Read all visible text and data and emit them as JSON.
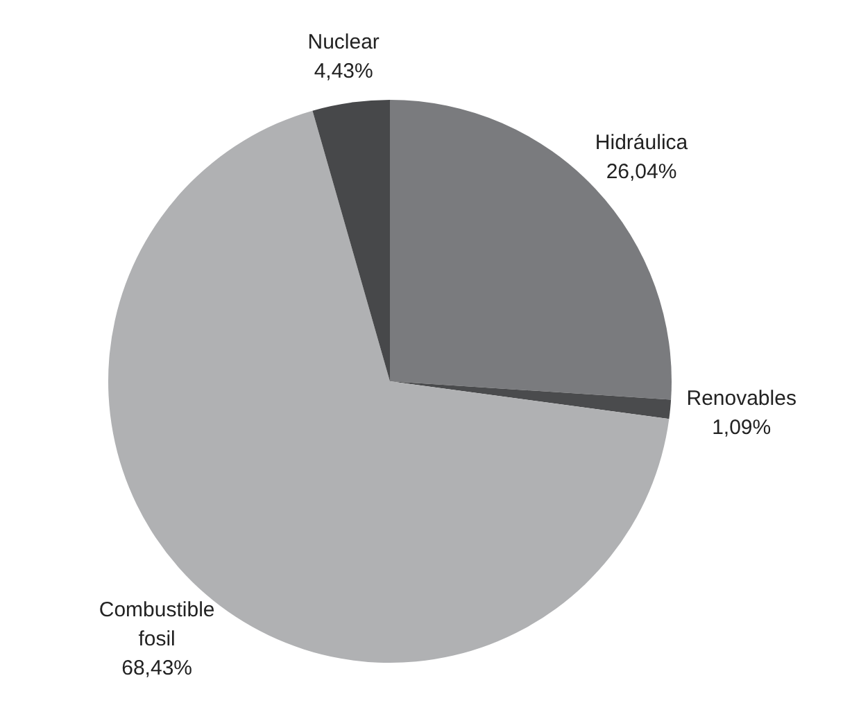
{
  "chart_data": {
    "type": "pie",
    "categories": [
      "Hidráulica",
      "Renovables",
      "Combustible fosil",
      "Nuclear"
    ],
    "values": [
      26.04,
      1.09,
      68.43,
      4.43
    ],
    "colors": [
      "#7a7b7e",
      "#4a4b4d",
      "#b0b1b3",
      "#47484a"
    ],
    "value_labels": [
      "26,04%",
      "1,09%",
      "68,43%",
      "4,43%"
    ],
    "legend": false
  }
}
